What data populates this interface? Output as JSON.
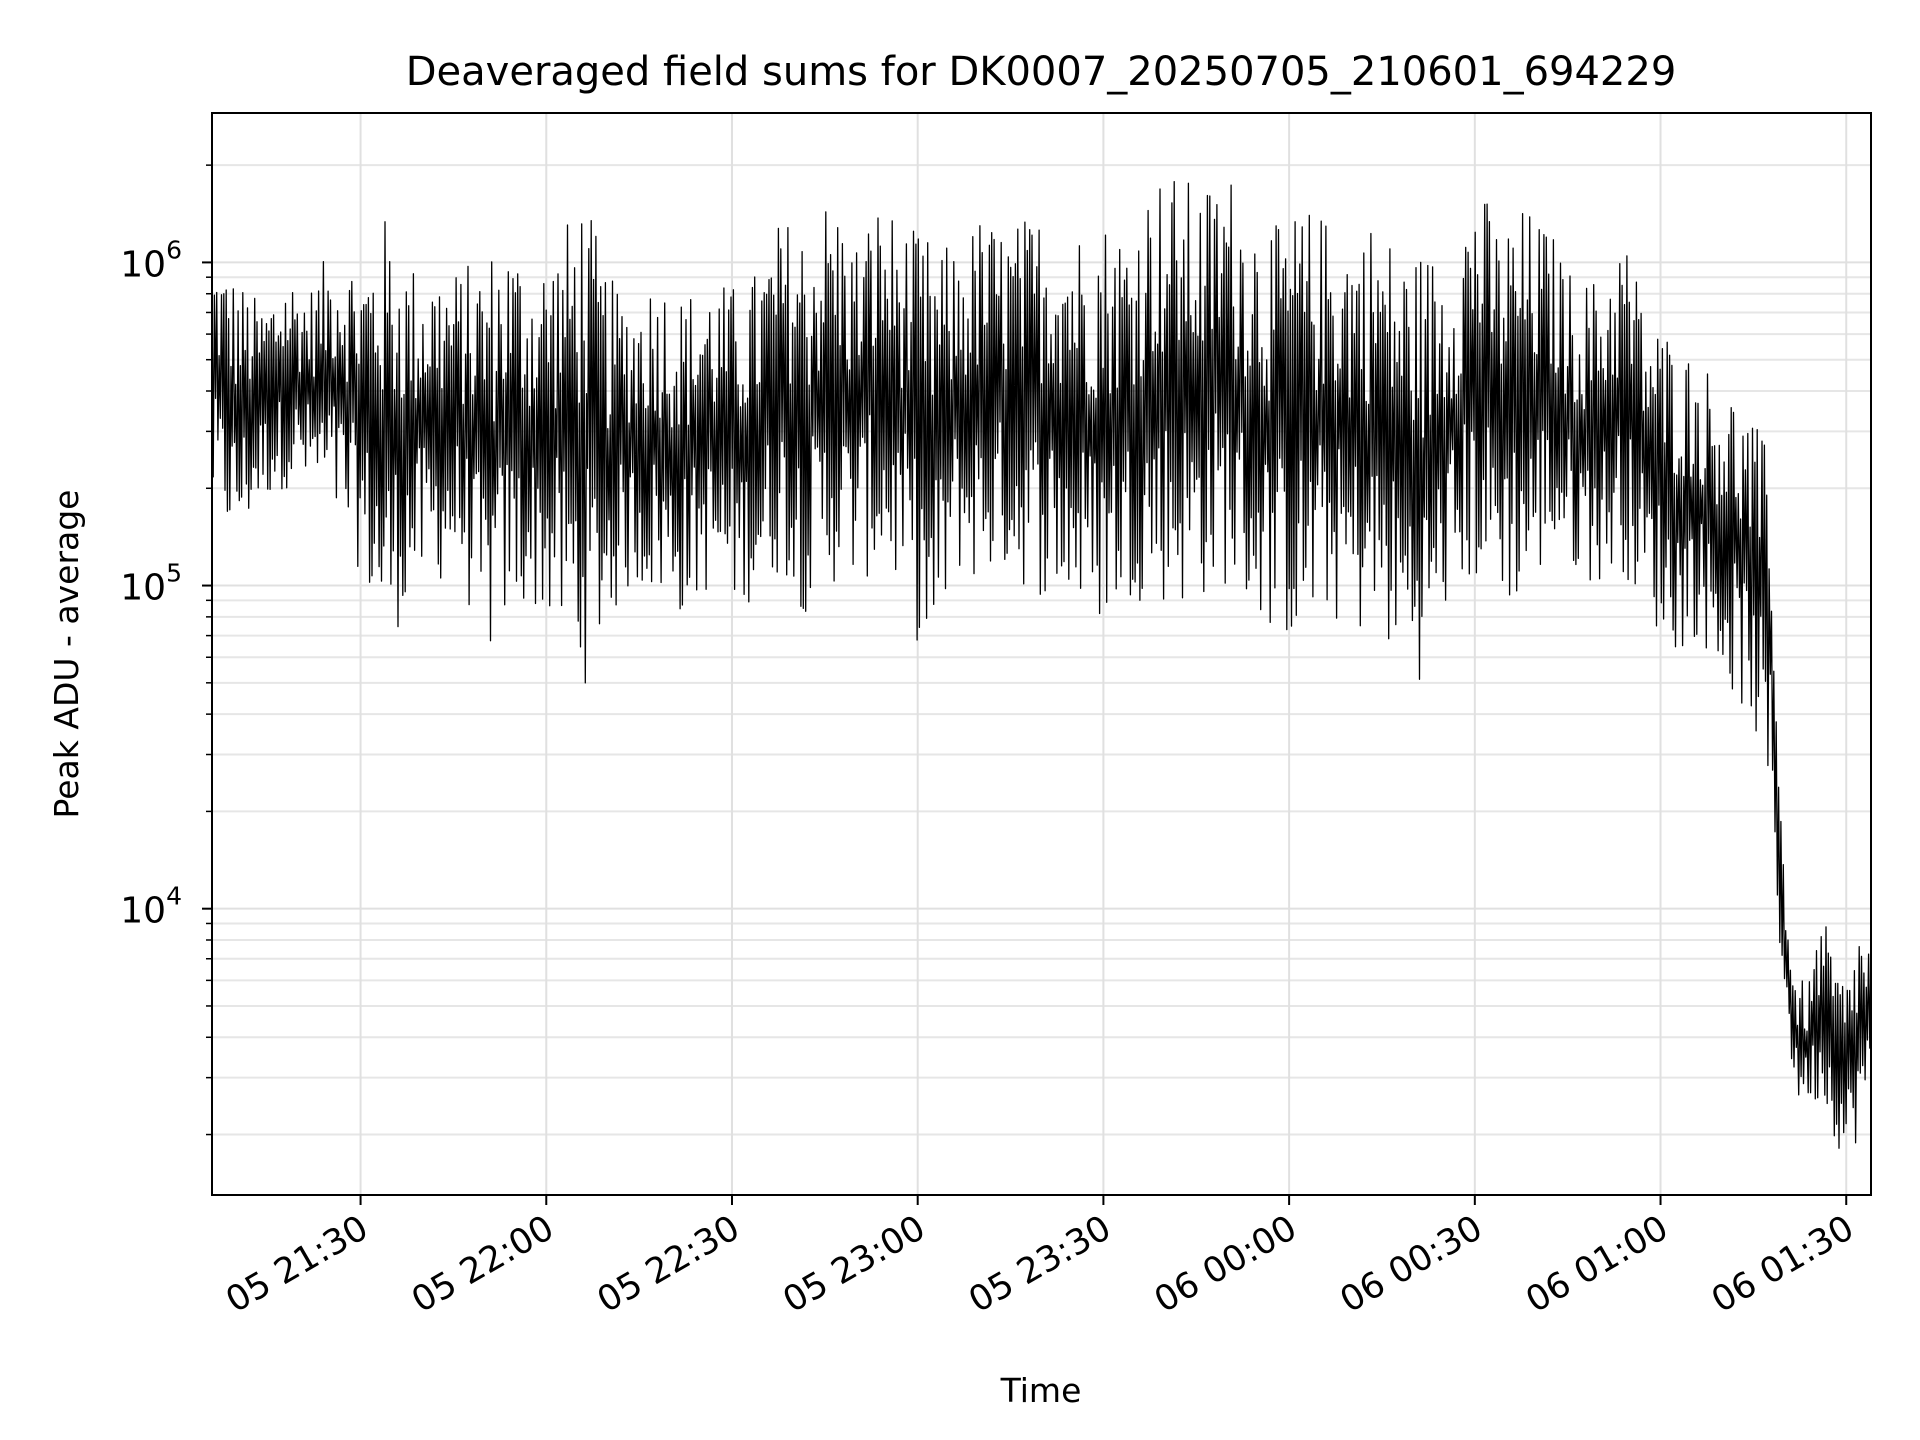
{
  "chart_data": {
    "type": "line",
    "title": "Deaveraged field sums for DK0007_20250705_210601_694229",
    "xlabel": "Time",
    "ylabel": "Peak ADU - average",
    "yscale": "log",
    "grid": true,
    "legend": "none",
    "xlim": [
      "2025-07-05T21:06:00",
      "2025-07-06T01:34:00"
    ],
    "ylim": [
      1300,
      2900000
    ],
    "x_ticks": [
      {
        "t": "2025-07-05T21:30:00",
        "label": "05 21:30"
      },
      {
        "t": "2025-07-05T22:00:00",
        "label": "05 22:00"
      },
      {
        "t": "2025-07-05T22:30:00",
        "label": "05 22:30"
      },
      {
        "t": "2025-07-05T23:00:00",
        "label": "05 23:00"
      },
      {
        "t": "2025-07-05T23:30:00",
        "label": "05 23:30"
      },
      {
        "t": "2025-07-06T00:00:00",
        "label": "06 00:00"
      },
      {
        "t": "2025-07-06T00:30:00",
        "label": "06 00:30"
      },
      {
        "t": "2025-07-06T01:00:00",
        "label": "06 01:00"
      },
      {
        "t": "2025-07-06T01:30:00",
        "label": "06 01:30"
      }
    ],
    "y_ticks": [
      {
        "value": 10000,
        "base": "10",
        "exp": "4"
      },
      {
        "value": 100000,
        "base": "10",
        "exp": "5"
      },
      {
        "value": 1000000,
        "base": "10",
        "exp": "6"
      }
    ],
    "line_color": "#000000",
    "series": [
      {
        "x": [
          "2025-07-05T21:06:00",
          "2025-07-05T21:10:00",
          "2025-07-05T21:14:00",
          "2025-07-05T21:18:00",
          "2025-07-05T21:22:00",
          "2025-07-05T21:26:00",
          "2025-07-05T21:30:00",
          "2025-07-05T21:34:00",
          "2025-07-05T21:38:00",
          "2025-07-05T21:42:00",
          "2025-07-05T21:46:00",
          "2025-07-05T21:50:00",
          "2025-07-05T21:54:00",
          "2025-07-05T21:58:00",
          "2025-07-05T22:02:00",
          "2025-07-05T22:06:00",
          "2025-07-05T22:10:00",
          "2025-07-05T22:14:00",
          "2025-07-05T22:18:00",
          "2025-07-05T22:22:00",
          "2025-07-05T22:26:00",
          "2025-07-05T22:30:00",
          "2025-07-05T22:34:00",
          "2025-07-05T22:38:00",
          "2025-07-05T22:42:00",
          "2025-07-05T22:46:00",
          "2025-07-05T22:50:00",
          "2025-07-05T22:54:00",
          "2025-07-05T22:58:00",
          "2025-07-05T23:02:00",
          "2025-07-05T23:06:00",
          "2025-07-05T23:10:00",
          "2025-07-05T23:14:00",
          "2025-07-05T23:18:00",
          "2025-07-05T23:22:00",
          "2025-07-05T23:26:00",
          "2025-07-05T23:30:00",
          "2025-07-05T23:34:00",
          "2025-07-05T23:38:00",
          "2025-07-05T23:42:00",
          "2025-07-05T23:46:00",
          "2025-07-05T23:50:00",
          "2025-07-05T23:54:00",
          "2025-07-05T23:58:00",
          "2025-07-06T00:02:00",
          "2025-07-06T00:06:00",
          "2025-07-06T00:10:00",
          "2025-07-06T00:14:00",
          "2025-07-06T00:18:00",
          "2025-07-06T00:22:00",
          "2025-07-06T00:26:00",
          "2025-07-06T00:30:00",
          "2025-07-06T00:34:00",
          "2025-07-06T00:38:00",
          "2025-07-06T00:42:00",
          "2025-07-06T00:46:00",
          "2025-07-06T00:50:00",
          "2025-07-06T00:54:00",
          "2025-07-06T00:58:00",
          "2025-07-06T01:02:00",
          "2025-07-06T01:06:00",
          "2025-07-06T01:10:00",
          "2025-07-06T01:14:00",
          "2025-07-06T01:16:00",
          "2025-07-06T01:18:00",
          "2025-07-06T01:19:00",
          "2025-07-06T01:20:00",
          "2025-07-06T01:21:00",
          "2025-07-06T01:22:00",
          "2025-07-06T01:24:00",
          "2025-07-06T01:26:00",
          "2025-07-06T01:28:00",
          "2025-07-06T01:30:00",
          "2025-07-06T01:32:00",
          "2025-07-06T01:34:00"
        ],
        "y_high": [
          1100000,
          900000,
          750000,
          950000,
          850000,
          1200000,
          1000000,
          1400000,
          1000000,
          1000000,
          950000,
          1100000,
          1200000,
          1000000,
          1200000,
          1700000,
          900000,
          800000,
          950000,
          800000,
          900000,
          850000,
          950000,
          1400000,
          1300000,
          1700000,
          1200000,
          1600000,
          1300000,
          1200000,
          1100000,
          1400000,
          1300000,
          1400000,
          1500000,
          1300000,
          1400000,
          1300000,
          1900000,
          1900000,
          1700000,
          2000000,
          1500000,
          1300000,
          1500000,
          1400000,
          1300000,
          1400000,
          1100000,
          1100000,
          1100000,
          1900000,
          1300000,
          1500000,
          1300000,
          900000,
          900000,
          1300000,
          700000,
          600000,
          500000,
          450000,
          350000,
          300000,
          250000,
          30000,
          15000,
          8000,
          6000,
          6000,
          10000,
          7000,
          6000,
          9000,
          8000
        ],
        "y_low": [
          170000,
          130000,
          180000,
          200000,
          190000,
          150000,
          110000,
          60000,
          90000,
          100000,
          110000,
          55000,
          80000,
          85000,
          70000,
          48000,
          75000,
          100000,
          90000,
          80000,
          95000,
          85000,
          90000,
          110000,
          80000,
          100000,
          100000,
          110000,
          90000,
          48000,
          110000,
          100000,
          110000,
          95000,
          90000,
          80000,
          75000,
          90000,
          90000,
          85000,
          90000,
          100000,
          80000,
          70000,
          65000,
          80000,
          70000,
          70000,
          55000,
          50000,
          90000,
          100000,
          90000,
          85000,
          120000,
          110000,
          100000,
          110000,
          80000,
          60000,
          70000,
          50000,
          40000,
          30000,
          15000,
          8500,
          5000,
          3500,
          2500,
          2500,
          2500,
          2000,
          1500,
          2000,
          2500
        ]
      }
    ]
  }
}
